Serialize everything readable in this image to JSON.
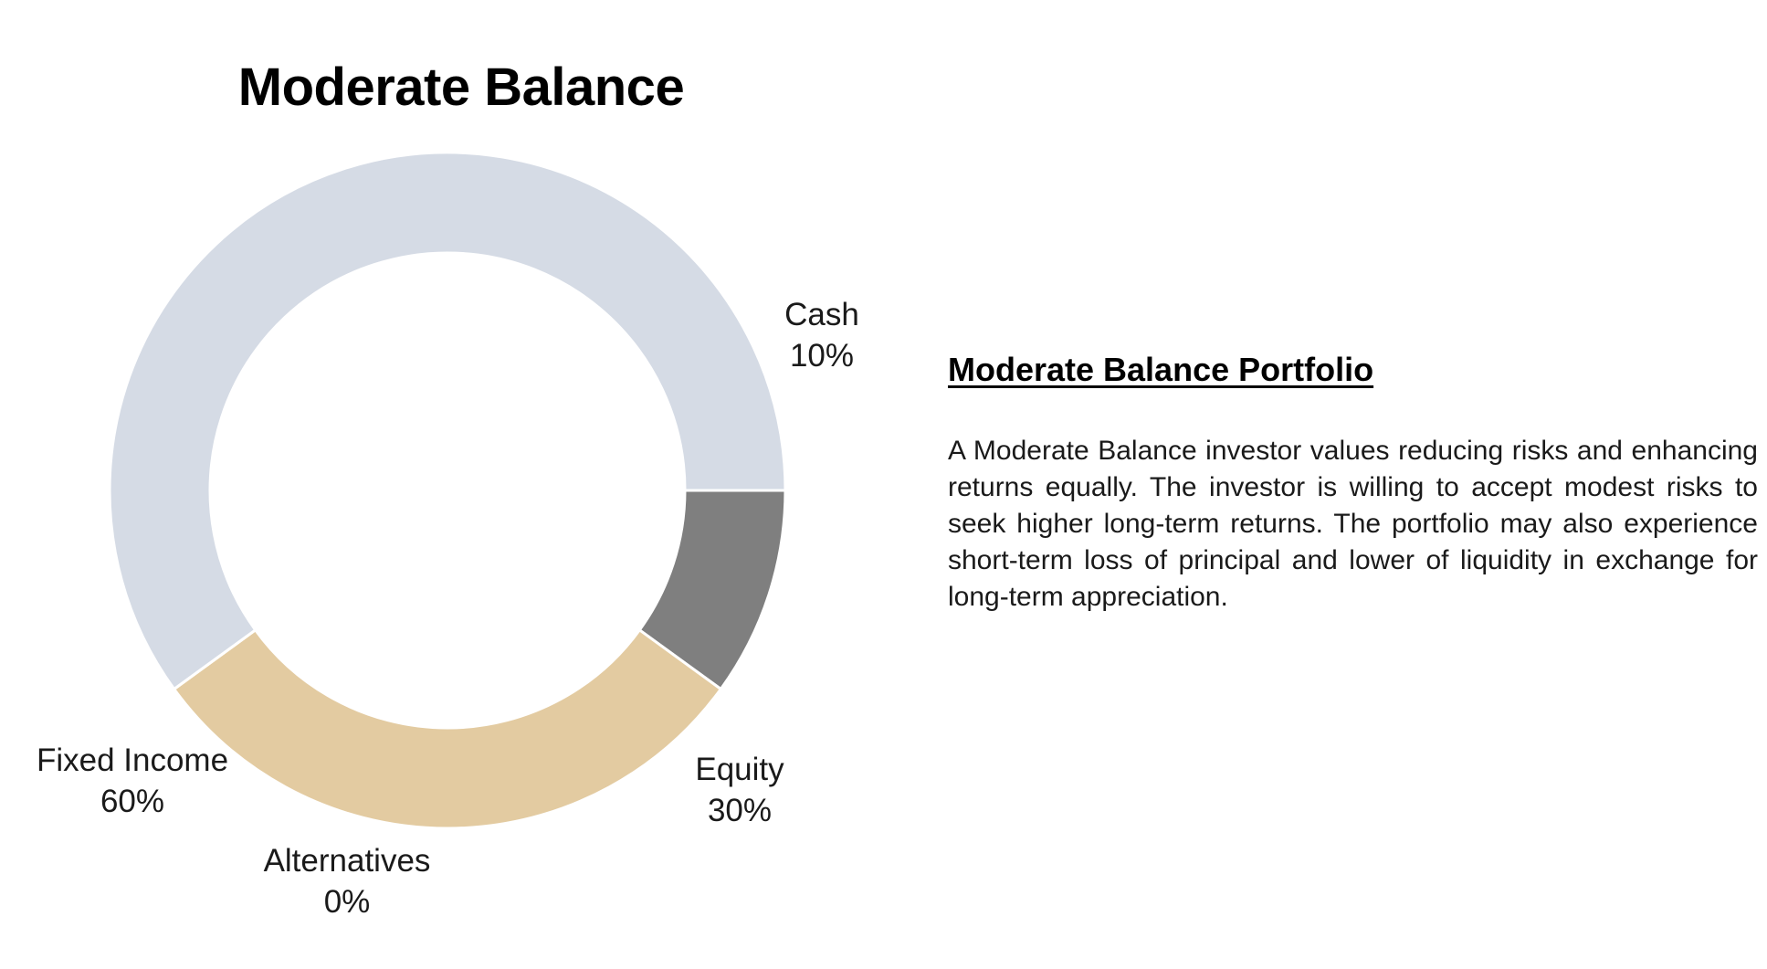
{
  "chart_data": {
    "type": "pie",
    "title": "Moderate Balance",
    "unit": "%",
    "slices": [
      {
        "name": "Cash",
        "value": 10,
        "label": "10%",
        "color": "#7f7f7f"
      },
      {
        "name": "Equity",
        "value": 30,
        "label": "30%",
        "color": "#e3cba1"
      },
      {
        "name": "Alternatives",
        "value": 0,
        "label": "0%",
        "color": "#ffffff"
      },
      {
        "name": "Fixed Income",
        "value": 60,
        "label": "60%",
        "color": "#d5dbe5"
      }
    ],
    "donut": true,
    "start": "east, clockwise"
  },
  "description": {
    "heading": "Moderate Balance Portfolio",
    "body": "A Moderate Balance investor values reducing risks and enhancing returns equally. The investor is willing to accept modest risks to seek higher long-term returns. The portfolio may also experience short-term loss of principal and lower of liquidity in exchange for long-term appreciation."
  }
}
